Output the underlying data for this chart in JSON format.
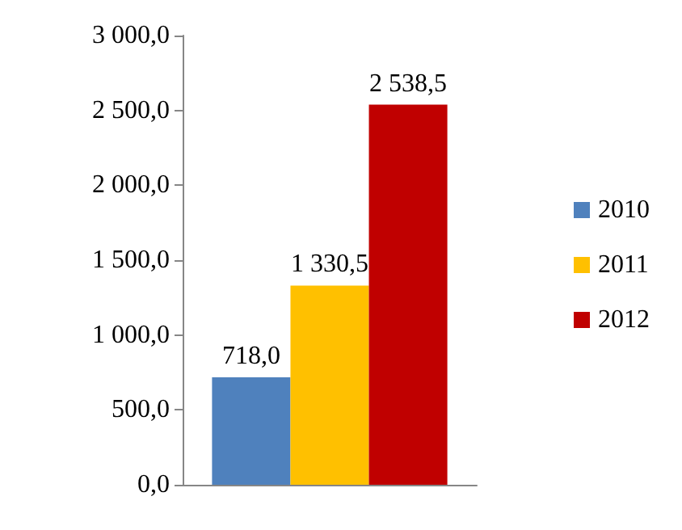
{
  "chart_data": {
    "type": "bar",
    "categories": [
      null
    ],
    "series": [
      {
        "name": "2010",
        "color": "#4f81bd",
        "values": [
          718.0
        ],
        "value_labels": [
          "718,0"
        ]
      },
      {
        "name": "2011",
        "color": "#ffc000",
        "values": [
          1330.5
        ],
        "value_labels": [
          "1 330,5"
        ]
      },
      {
        "name": "2012",
        "color": "#c00000",
        "values": [
          2538.5
        ],
        "value_labels": [
          "2 538,5"
        ]
      }
    ],
    "ylim": [
      0,
      3000
    ],
    "yticks": [
      {
        "value": 0,
        "label": "0,0"
      },
      {
        "value": 500,
        "label": "500,0"
      },
      {
        "value": 1000,
        "label": "1 000,0"
      },
      {
        "value": 1500,
        "label": "1 500,0"
      },
      {
        "value": 2000,
        "label": "2 000,0"
      },
      {
        "value": 2500,
        "label": "2 500,0"
      },
      {
        "value": 3000,
        "label": "3 000,0"
      }
    ],
    "grid": false,
    "legend": "right"
  }
}
